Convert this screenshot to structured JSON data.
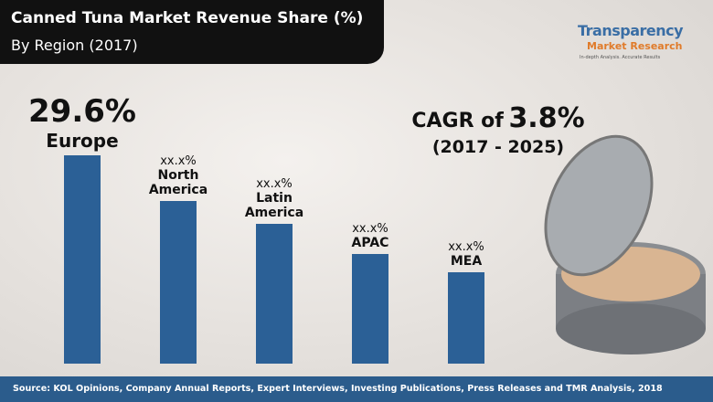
{
  "chart_data": {
    "type": "bar",
    "title": "Canned Tuna Market Revenue Share (%)",
    "subtitle": "By Region (2017)",
    "categories": [
      "Europe",
      "North America",
      "Latin America",
      "APAC",
      "MEA"
    ],
    "values": [
      29.6,
      23.1,
      19.9,
      15.6,
      13.0
    ],
    "value_labels": [
      "29.6%",
      "xx.x%",
      "xx.x%",
      "xx.x%",
      "xx.x%"
    ],
    "color": "#2b6096",
    "cagr_label": "CAGR of",
    "cagr": "3.8%",
    "cagr_period": "(2017 - 2025)",
    "logo": {
      "name": "Transparency",
      "subname": "Market Research",
      "tagline": "In-depth Analysis. Accurate Results"
    },
    "source": "Source: KOL Opinions, Company Annual Reports, Expert Interviews, Investing Publications, Press Releases and TMR Analysis, 2018"
  }
}
